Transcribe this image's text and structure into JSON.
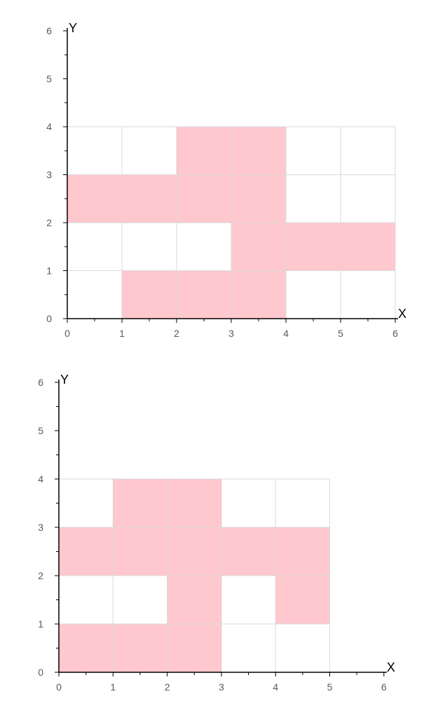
{
  "fill_color": "#ffc7ce",
  "chart_data": [
    {
      "type": "heatmap",
      "xlabel": "X",
      "ylabel": "Y",
      "xlim": [
        0,
        6
      ],
      "ylim": [
        0,
        6
      ],
      "x_ticks": [
        "0",
        "1",
        "2",
        "3",
        "4",
        "5",
        "6"
      ],
      "y_ticks": [
        "0",
        "1",
        "2",
        "3",
        "4",
        "5",
        "6"
      ],
      "grid_region": {
        "x": [
          0,
          6
        ],
        "y": [
          0,
          4
        ]
      },
      "filled_cells": [
        [
          0,
          2
        ],
        [
          1,
          2
        ],
        [
          2,
          2
        ],
        [
          3,
          2
        ],
        [
          2,
          3
        ],
        [
          3,
          3
        ],
        [
          3,
          1
        ],
        [
          4,
          1
        ],
        [
          5,
          1
        ],
        [
          1,
          0
        ],
        [
          2,
          0
        ],
        [
          3,
          0
        ]
      ]
    },
    {
      "type": "heatmap",
      "xlabel": "X",
      "ylabel": "Y",
      "xlim": [
        0,
        6
      ],
      "ylim": [
        0,
        6
      ],
      "x_ticks": [
        "0",
        "1",
        "2",
        "3",
        "4",
        "5",
        "6"
      ],
      "y_ticks": [
        "0",
        "1",
        "2",
        "3",
        "4",
        "5",
        "6"
      ],
      "grid_region": {
        "x": [
          0,
          5
        ],
        "y": [
          0,
          4
        ]
      },
      "filled_cells": [
        [
          0,
          0
        ],
        [
          1,
          0
        ],
        [
          2,
          0
        ],
        [
          2,
          1
        ],
        [
          4,
          1
        ],
        [
          0,
          2
        ],
        [
          1,
          2
        ],
        [
          2,
          2
        ],
        [
          3,
          2
        ],
        [
          4,
          2
        ],
        [
          1,
          3
        ],
        [
          2,
          3
        ]
      ]
    }
  ]
}
